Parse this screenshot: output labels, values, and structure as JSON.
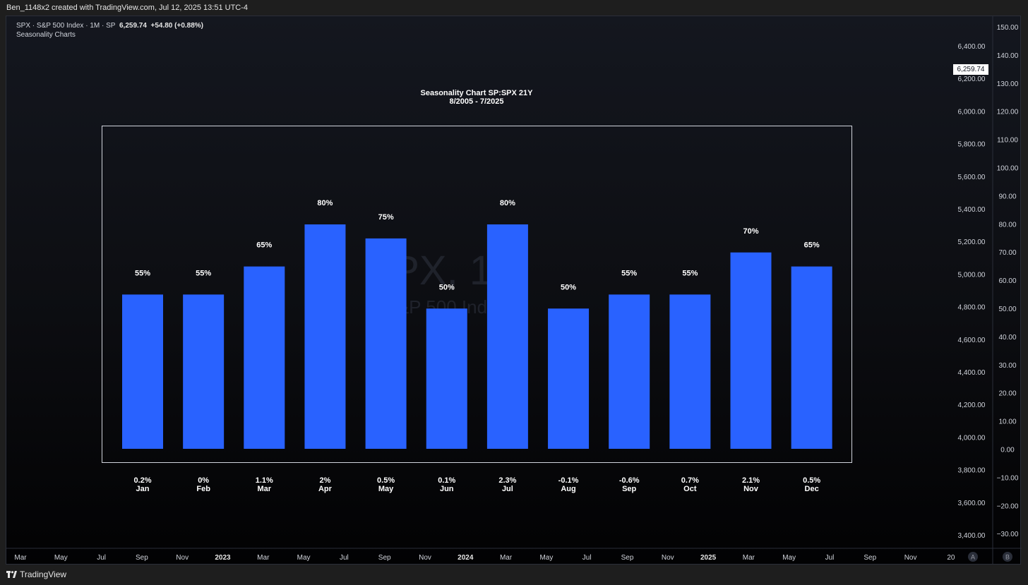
{
  "header": {
    "attribution": "Ben_1148x2 created with TradingView.com, Jul 12, 2025 13:51 UTC-4"
  },
  "legend": {
    "symbol_line": "SPX · S&P 500 Index · 1M · SP",
    "last_value": "6,259.74",
    "change": "+54.80 (+0.88%)",
    "indicator": "Seasonality Charts"
  },
  "watermark": {
    "line1": "SPX, 1M",
    "line2": "S&P 500 Index"
  },
  "price_axis": {
    "labels": [
      "6,400.00",
      "6,200.00",
      "6,000.00",
      "5,800.00",
      "5,600.00",
      "5,400.00",
      "5,200.00",
      "5,000.00",
      "4,800.00",
      "4,600.00",
      "4,400.00",
      "4,200.00",
      "4,000.00",
      "3,800.00",
      "3,600.00",
      "3,400.00"
    ],
    "current_price": "6,259.74"
  },
  "pct_axis": {
    "labels": [
      "150.00",
      "140.00",
      "130.00",
      "120.00",
      "110.00",
      "100.00",
      "90.00",
      "80.00",
      "70.00",
      "60.00",
      "50.00",
      "40.00",
      "30.00",
      "20.00",
      "10.00",
      "0.00",
      "−10.00",
      "−20.00",
      "−30.00"
    ]
  },
  "time_axis": {
    "labels": [
      "Mar",
      "May",
      "Jul",
      "Sep",
      "Nov",
      "2023",
      "Mar",
      "May",
      "Jul",
      "Sep",
      "Nov",
      "2024",
      "Mar",
      "May",
      "Jul",
      "Sep",
      "Nov",
      "2025",
      "Mar",
      "May",
      "Jul",
      "Sep",
      "Nov",
      "20"
    ],
    "bold": [
      "2023",
      "2024",
      "2025"
    ]
  },
  "scale_buttons": {
    "auto": "A",
    "log": "B"
  },
  "footer": {
    "brand": "TradingView"
  },
  "colors": {
    "bar": "#2962ff",
    "background_top": "#14171f",
    "background_bottom": "#020203",
    "text": "#ffffff"
  },
  "chart_data": {
    "type": "bar",
    "title": "Seasonality Chart SP:SPX 21Y",
    "subtitle": "8/2005 - 7/2025",
    "categories": [
      "Jan",
      "Feb",
      "Mar",
      "Apr",
      "May",
      "Jun",
      "Jul",
      "Aug",
      "Sep",
      "Oct",
      "Nov",
      "Dec"
    ],
    "values": [
      55,
      55,
      65,
      80,
      75,
      50,
      80,
      50,
      55,
      55,
      70,
      65
    ],
    "value_labels": [
      "55%",
      "55%",
      "65%",
      "80%",
      "75%",
      "50%",
      "80%",
      "50%",
      "55%",
      "55%",
      "70%",
      "65%"
    ],
    "avg_returns": [
      "0.2%",
      "0%",
      "1.1%",
      "2%",
      "0.5%",
      "0.1%",
      "2.3%",
      "-0.1%",
      "-0.6%",
      "0.7%",
      "2.1%",
      "0.5%"
    ],
    "ylim": [
      0,
      80
    ]
  }
}
